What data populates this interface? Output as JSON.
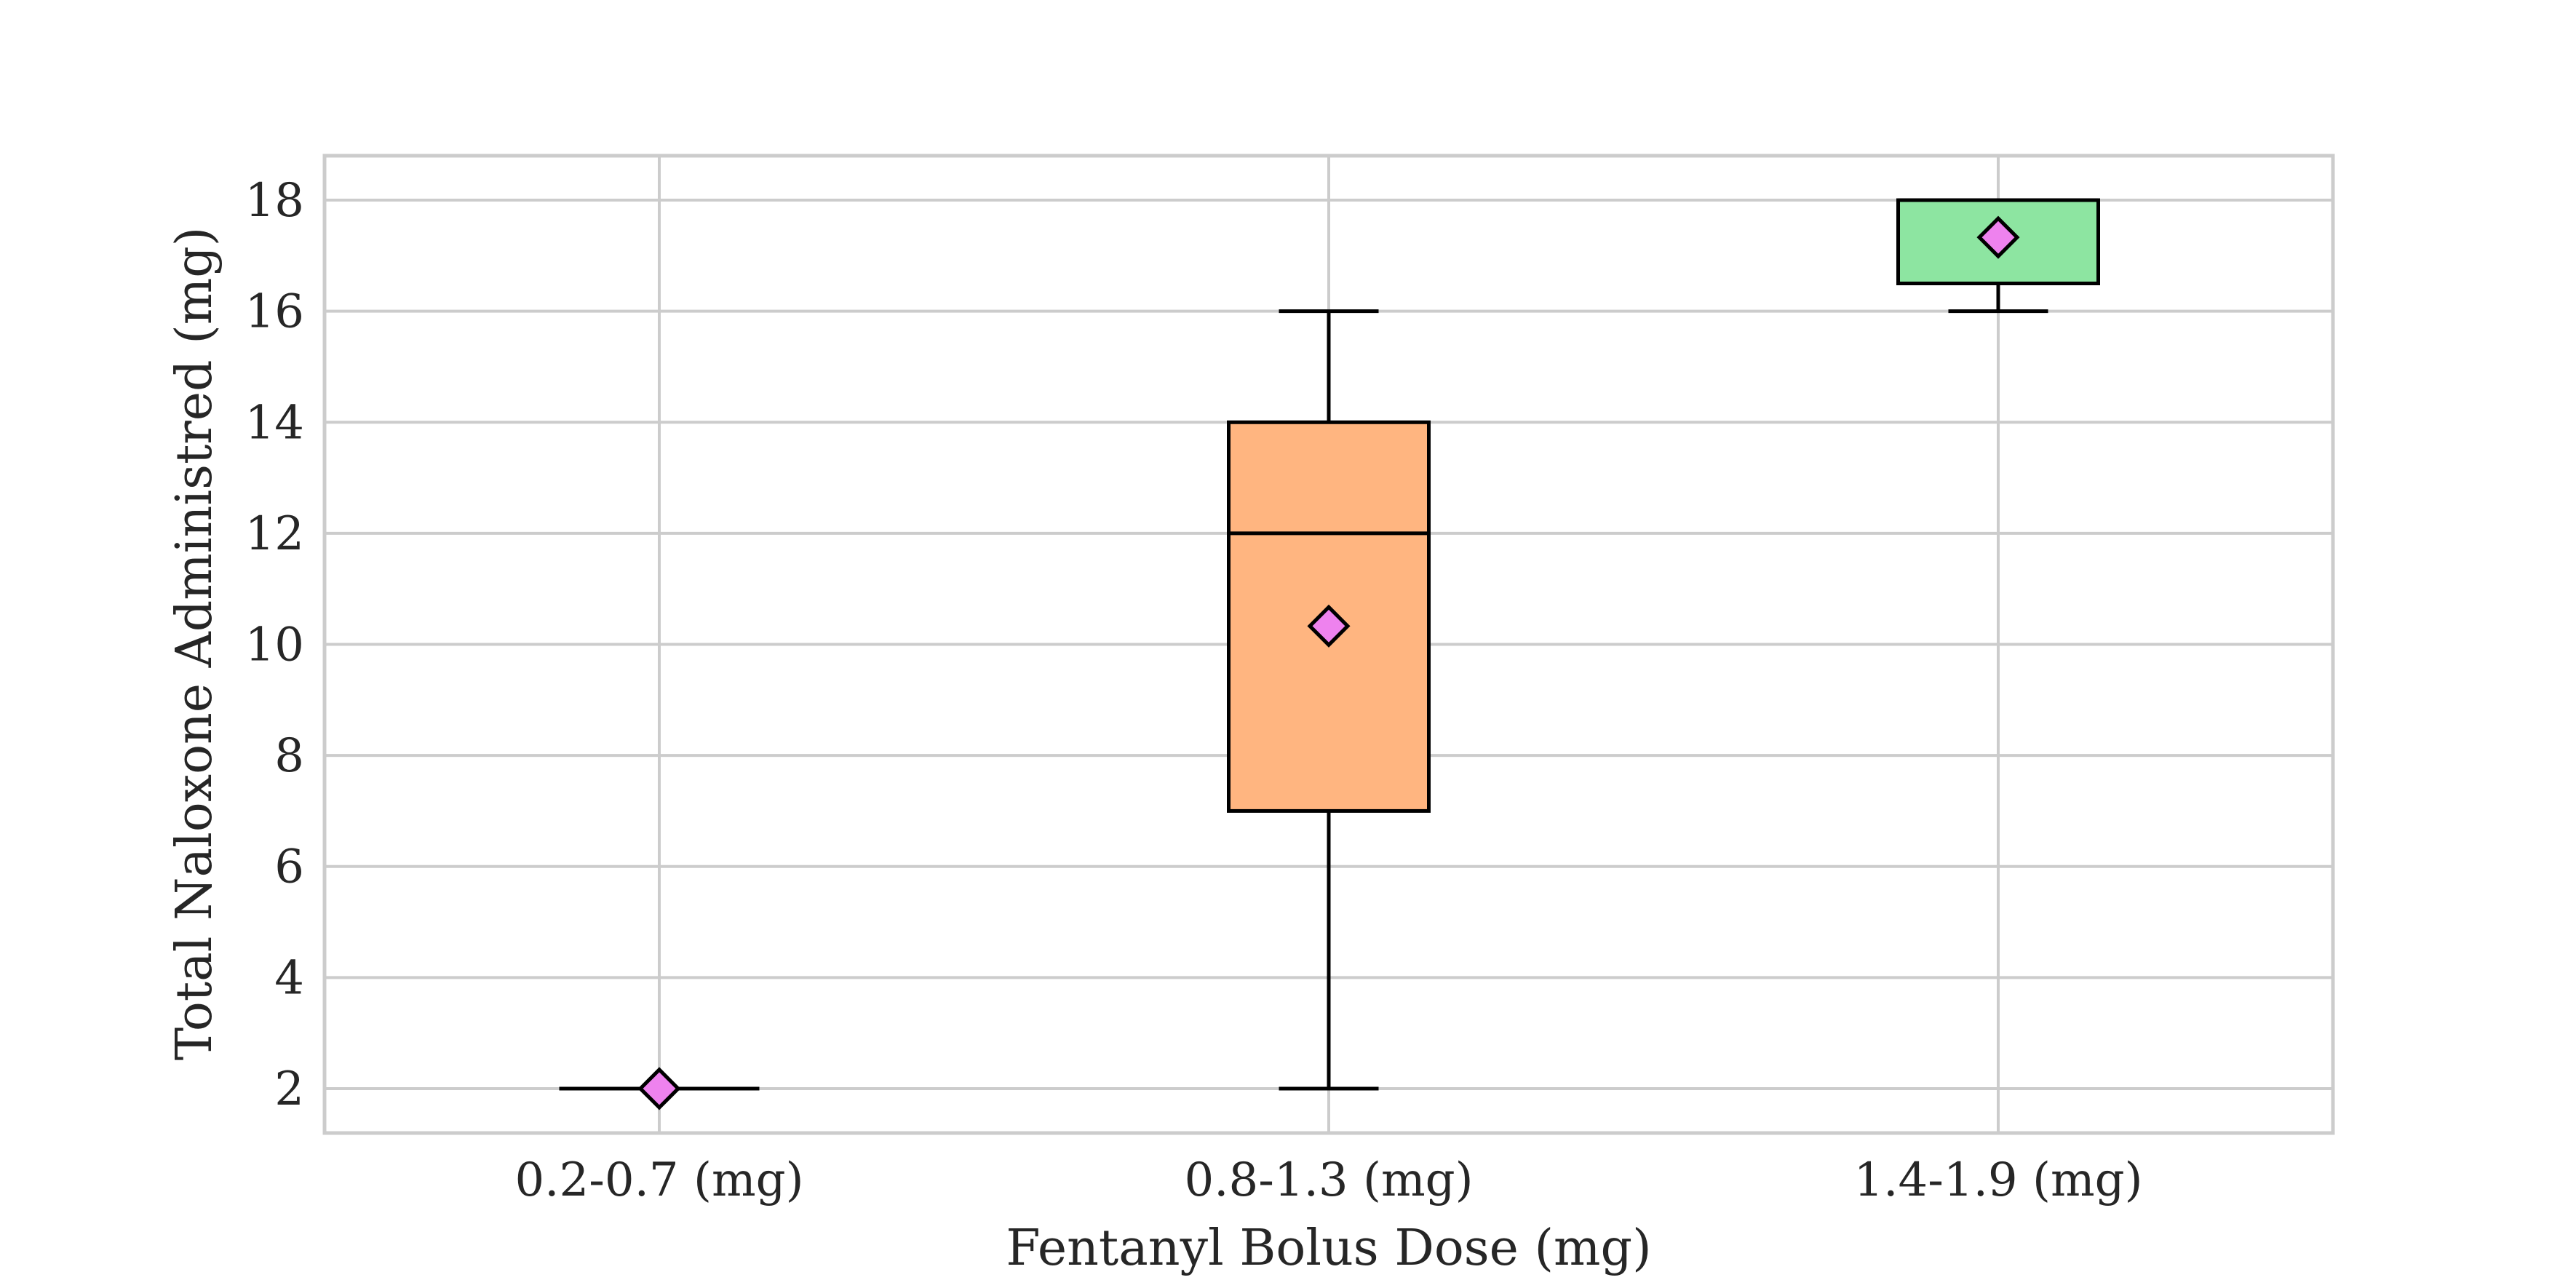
{
  "chart_data": {
    "type": "box",
    "title": "",
    "xlabel": "Fentanyl Bolus Dose (mg)",
    "ylabel": "Total Naloxone Administred (mg)",
    "ylim": [
      1.2,
      18.8
    ],
    "yticks": [
      "2",
      "4",
      "6",
      "8",
      "10",
      "12",
      "14",
      "16",
      "18"
    ],
    "grid": true,
    "categories": [
      "0.2-0.7 (mg)",
      "0.8-1.3 (mg)",
      "1.4-1.9 (mg)"
    ],
    "boxes": [
      {
        "category": "0.2-0.7 (mg)",
        "whisker_low": 2,
        "q1": 2,
        "median": 2,
        "q3": 2,
        "whisker_high": 2,
        "mean": 2,
        "fill": "#8fb4f2"
      },
      {
        "category": "0.8-1.3 (mg)",
        "whisker_low": 2,
        "q1": 7,
        "median": 12,
        "q3": 14,
        "whisker_high": 16,
        "mean": 10.33,
        "fill": "#ffb580"
      },
      {
        "category": "1.4-1.9 (mg)",
        "whisker_low": 16,
        "q1": 16.5,
        "median": 18,
        "q3": 18,
        "whisker_high": 18,
        "mean": 17.33,
        "fill": "#8de5a1"
      }
    ],
    "mean_marker": {
      "shape": "diamond",
      "color": "#ee82ee"
    },
    "colors": {
      "grid": "#cccccc",
      "frame": "#cccccc",
      "line": "#000000"
    }
  }
}
